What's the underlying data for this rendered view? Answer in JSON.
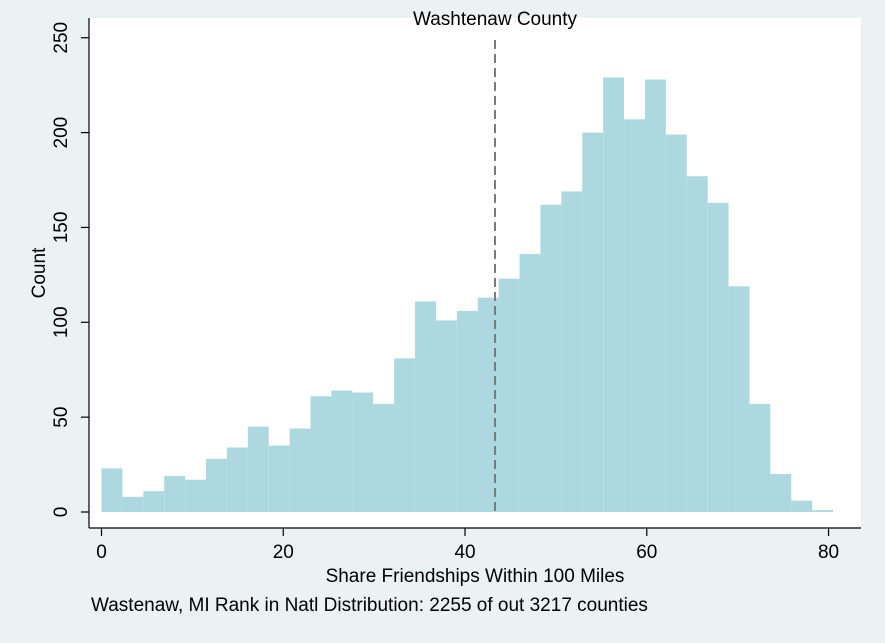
{
  "chart_data": {
    "type": "bar",
    "title": "",
    "xlabel": "Share Friendships Within 100 Miles",
    "ylabel": "Count",
    "xlim": [
      -1,
      83
    ],
    "ylim": [
      0,
      250
    ],
    "x_ticks": [
      0,
      20,
      40,
      60,
      80
    ],
    "y_ticks": [
      0,
      50,
      100,
      150,
      200,
      250
    ],
    "grid": false,
    "bin_width": 2.3,
    "bin_start": 0,
    "values": [
      23,
      8,
      11,
      19,
      17,
      28,
      34,
      45,
      35,
      44,
      61,
      64,
      63,
      57,
      81,
      111,
      101,
      106,
      113,
      123,
      136,
      162,
      169,
      200,
      229,
      207,
      228,
      199,
      177,
      163,
      119,
      57,
      20,
      6,
      1
    ],
    "bar_color": "#add8e0",
    "reference_line": {
      "x": 43.3,
      "label": "Washtenaw County",
      "style": "dashed",
      "color": "#7a7a7a"
    },
    "note": "Wastenaw, MI Rank in Natl Distribution: 2255 of out 3217 counties"
  }
}
